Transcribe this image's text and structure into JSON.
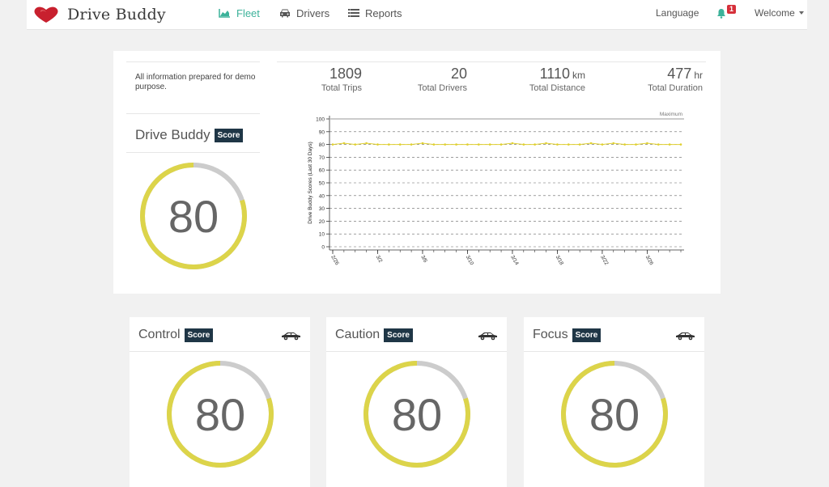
{
  "nav": {
    "brand": "Drive Buddy",
    "items": [
      {
        "label": "Fleet",
        "active": true
      },
      {
        "label": "Drivers",
        "active": false
      },
      {
        "label": "Reports",
        "active": false
      }
    ],
    "language": "Language",
    "notification_count": "1",
    "welcome": "Welcome",
    "accent_color": "#3cb29a"
  },
  "summary": {
    "info": "All information prepared for demo purpose.",
    "title": "Drive Buddy",
    "badge": "Score",
    "score": "80",
    "score_fraction": 0.8,
    "stats": [
      {
        "value": "1809",
        "unit": "",
        "label": "Total Trips"
      },
      {
        "value": "20",
        "unit": "",
        "label": "Total Drivers"
      },
      {
        "value": "1110",
        "unit": "km",
        "label": "Total Distance"
      },
      {
        "value": "477",
        "unit": "hr",
        "label": "Total Duration"
      }
    ]
  },
  "chart_data": {
    "type": "line",
    "ylabel": "Drive Buddy Scores (Last 30 Days)",
    "ylim": [
      0,
      100
    ],
    "yticks": [
      0,
      10,
      20,
      30,
      40,
      50,
      60,
      70,
      80,
      90,
      100
    ],
    "xticks": [
      "2/26",
      "3/2",
      "3/6",
      "3/10",
      "3/14",
      "3/18",
      "3/22",
      "3/26"
    ],
    "max_label": "Maximum",
    "max_value": 100,
    "series": [
      {
        "values": [
          80,
          81,
          80,
          81,
          80,
          80,
          80,
          80,
          81,
          80,
          80,
          80,
          80,
          80,
          80,
          80,
          81,
          80,
          80,
          81,
          80,
          80,
          80,
          81,
          80,
          81,
          80,
          80,
          81,
          80,
          80,
          80
        ],
        "color": "#e0d030"
      }
    ]
  },
  "cards": [
    {
      "title": "Control",
      "badge": "Score",
      "score": "80",
      "fraction": 0.8
    },
    {
      "title": "Caution",
      "badge": "Score",
      "score": "80",
      "fraction": 0.8
    },
    {
      "title": "Focus",
      "badge": "Score",
      "score": "80",
      "fraction": 0.8
    }
  ],
  "colors": {
    "gauge_fill": "#dcd44a",
    "gauge_track": "#cccccc",
    "badge_bg": "#1f3646"
  }
}
